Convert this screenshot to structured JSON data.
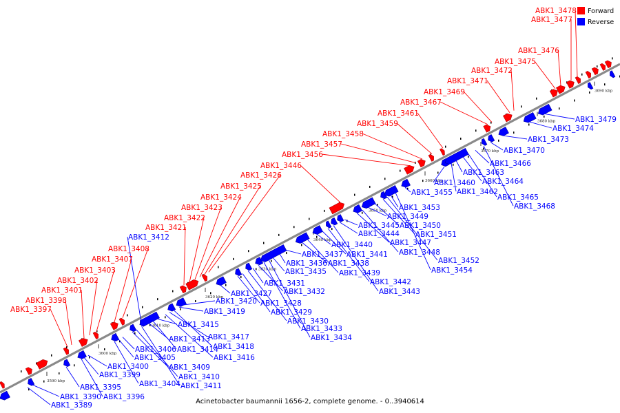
{
  "caption": "Acinetobacter baumannii 1656-2, complete genome. - 0..3940614",
  "legend": [
    {
      "label": "Forward",
      "color": "#ff0000"
    },
    {
      "label": "Reverse",
      "color": "#0000ff"
    }
  ],
  "colors": {
    "forward": "#ff0000",
    "reverse": "#0000ff",
    "backbone": "#8a8a8a"
  },
  "ticks": [
    "3590 kbp",
    "3600 kbp",
    "3610 kbp",
    "3620 kbp",
    "3630 kbp",
    "3640 kbp",
    "3650 kbp",
    "3660 kbp",
    "3670 kbp",
    "3680 kbp",
    "3690 kbp"
  ],
  "forward_labels": [
    "ABK1_3397",
    "ABK1_3398",
    "ABK1_3401",
    "ABK1_3402",
    "ABK1_3403",
    "ABK1_3407",
    "ABK1_3408",
    "ABK1_3421",
    "ABK1_3422",
    "ABK1_3423",
    "ABK1_3424",
    "ABK1_3425",
    "ABK1_3426",
    "ABK1_3446",
    "ABK1_3456",
    "ABK1_3457",
    "ABK1_3458",
    "ABK1_3459",
    "ABK1_3461",
    "ABK1_3467",
    "ABK1_3469",
    "ABK1_3471",
    "ABK1_3472",
    "ABK1_3475",
    "ABK1_3476",
    "ABK1_3477",
    "ABK1_3478"
  ],
  "reverse_labels": [
    "ABK1_3389",
    "ABK1_3390",
    "ABK1_3395",
    "ABK1_3396",
    "ABK1_3399",
    "ABK1_3400",
    "ABK1_3404",
    "ABK1_3405",
    "ABK1_3406",
    "ABK1_3409",
    "ABK1_3410",
    "ABK1_3411",
    "ABK1_3412",
    "ABK1_3413",
    "ABK1_3414",
    "ABK1_3415",
    "ABK1_3416",
    "ABK1_3417",
    "ABK1_3418",
    "ABK1_3419",
    "ABK1_3420",
    "ABK1_3427",
    "ABK1_3428",
    "ABK1_3429",
    "ABK1_3430",
    "ABK1_3431",
    "ABK1_3432",
    "ABK1_3433",
    "ABK1_3434",
    "ABK1_3435",
    "ABK1_3436",
    "ABK1_3437",
    "ABK1_3438",
    "ABK1_3439",
    "ABK1_3440",
    "ABK1_3441",
    "ABK1_3442",
    "ABK1_3443",
    "ABK1_3444",
    "ABK1_3445",
    "ABK1_3447",
    "ABK1_3448",
    "ABK1_3449",
    "ABK1_3450",
    "ABK1_3451",
    "ABK1_3452",
    "ABK1_3453",
    "ABK1_3454",
    "ABK1_3455",
    "ABK1_3460",
    "ABK1_3462",
    "ABK1_3463",
    "ABK1_3464",
    "ABK1_3465",
    "ABK1_3466",
    "ABK1_3468",
    "ABK1_3470",
    "ABK1_3473",
    "ABK1_3474",
    "ABK1_3479"
  ]
}
